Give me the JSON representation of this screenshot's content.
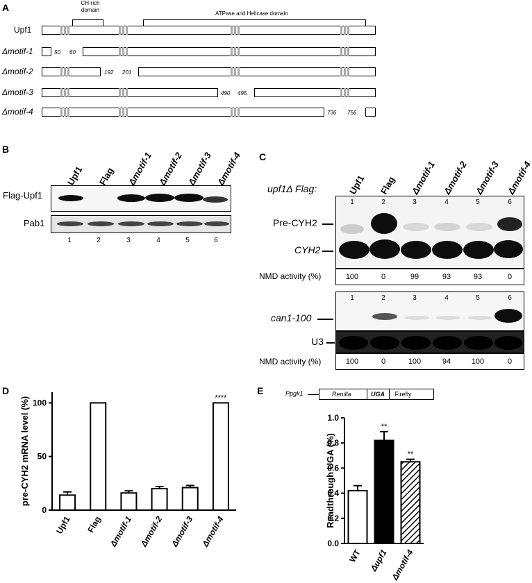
{
  "panel_a": {
    "label": "A",
    "domain_ch": "CH-rich\ndomain",
    "domain_atp": "ATPase and Helicase domain",
    "constructs": [
      {
        "name": "Upf1",
        "num_left": "",
        "num_right": ""
      },
      {
        "name": "Δmotif-1",
        "num_left": "50",
        "num_right": "60"
      },
      {
        "name": "Δmotif-2",
        "num_left": "192",
        "num_right": "201"
      },
      {
        "name": "Δmotif-3",
        "num_left": "490",
        "num_right": "495"
      },
      {
        "name": "Δmotif-4",
        "num_left": "736",
        "num_right": "756"
      }
    ]
  },
  "panel_b": {
    "label": "B",
    "lanes": [
      "Upf1",
      "Flag",
      "Δmotif-1",
      "Δmotif-2",
      "Δmotif-3",
      "Δmotif-4"
    ],
    "row1": "Flag-Upf1",
    "row2": "Pab1",
    "lane_numbers": [
      "1",
      "2",
      "3",
      "4",
      "5",
      "6"
    ]
  },
  "panel_c": {
    "label": "C",
    "header": "upf1Δ Flag:",
    "lanes": [
      "Upf1",
      "Flag",
      "Δmotif-1",
      "Δmotif-2",
      "Δmotif-3",
      "Δmotif-4"
    ],
    "lane_numbers": [
      "1",
      "2",
      "3",
      "4",
      "5",
      "6"
    ],
    "pre_cyh2": "Pre-CYH2",
    "cyh2": "CYH2",
    "can1": "can1-100",
    "u3": "U3",
    "nmd_label": "NMD activity (%)",
    "nmd_top": [
      "100",
      "0",
      "99",
      "93",
      "93",
      "0"
    ],
    "nmd_bottom": [
      "100",
      "0",
      "100",
      "94",
      "100",
      "0"
    ]
  },
  "panel_d": {
    "label": "D",
    "significance": "****"
  },
  "panel_e": {
    "label": "E",
    "promoter": "Ppgk1",
    "reporter": [
      "Renilla",
      "UGA",
      "Firefly"
    ],
    "significance": [
      "**",
      "**"
    ]
  },
  "chart_data": [
    {
      "type": "bar",
      "panel": "D",
      "categories": [
        "Upf1",
        "Flag",
        "Δmotif-1",
        "Δmotif-2",
        "Δmotif-3",
        "Δmotif-4"
      ],
      "values": [
        14,
        100,
        16,
        20,
        21,
        100
      ],
      "errors": [
        3,
        0,
        2,
        2,
        2,
        0
      ],
      "ylabel": "pre-CYH2 mRNA level (%)",
      "ylim": [
        0,
        110
      ],
      "yticks": [
        "0",
        "50",
        "100"
      ],
      "fills": [
        "#ffffff",
        "#ffffff",
        "#ffffff",
        "#ffffff",
        "#ffffff",
        "#ffffff"
      ]
    },
    {
      "type": "bar",
      "panel": "E",
      "categories": [
        "WT",
        "Δupf1",
        "Δmotif-4"
      ],
      "values": [
        0.42,
        0.82,
        0.65
      ],
      "errors": [
        0.04,
        0.07,
        0.02
      ],
      "ylabel": "Readthrough UGA (%)",
      "ylim": [
        0,
        1.0
      ],
      "yticks": [
        "0.0",
        "0.2",
        "0.4",
        "0.6",
        "0.8",
        "1.0"
      ],
      "fills": [
        "#ffffff",
        "#000000",
        "hatch"
      ]
    }
  ]
}
